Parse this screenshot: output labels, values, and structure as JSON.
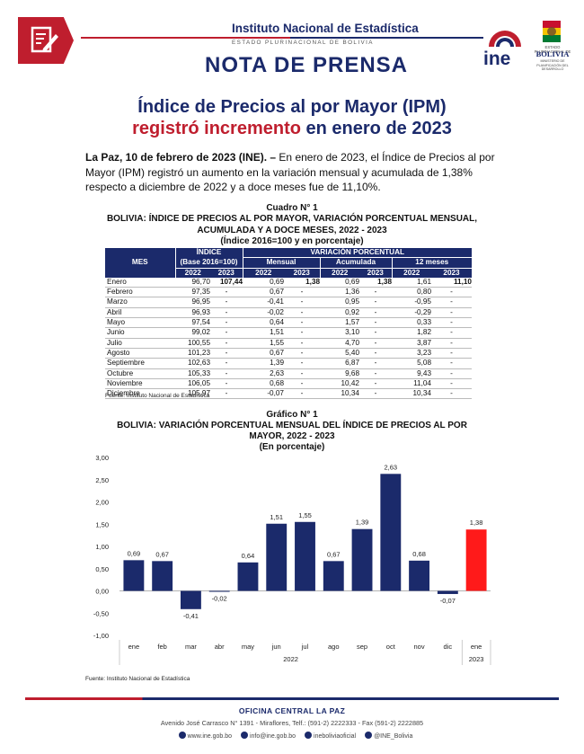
{
  "header": {
    "institution": "Instituto Nacional de Estadística",
    "subtitle": "ESTADO PLURINACIONAL DE BOLIVIA",
    "nota": "NOTA DE PRENSA",
    "logo_text": "ine",
    "gov_estado": "ESTADO PLURINACIONAL DE",
    "gov_country": "BOLIVIA",
    "gov_ministry": "MINISTERIO DE PLANIFICACIÓN DEL DESARROLLO"
  },
  "title": {
    "line1": "Índice de Precios al por Mayor (IPM)",
    "line2_red": "registró incremento",
    "line2_blue": " en enero de 2023"
  },
  "intro": {
    "lead": "La Paz, 10 de febrero de 2023 (INE). –",
    "body": " En enero de 2023, el Índice de Precios al por Mayor (IPM) registró un aumento en la variación mensual y acumulada de 1,38% respecto a diciembre de 2022 y a doce meses fue de 11,10%."
  },
  "table": {
    "label": "Cuadro N° 1",
    "title1": "BOLIVIA: ÍNDICE DE PRECIOS AL POR MAYOR, VARIACIÓN PORCENTUAL MENSUAL,",
    "title2": "ACUMULADA Y A DOCE MESES, 2022 - 2023",
    "title3": "(Índice 2016=100 y en porcentaje)",
    "h_mes": "MES",
    "h_indice": "ÍNDICE",
    "h_base": "(Base 2016=100)",
    "h_variacion": "VARIACIÓN PORCENTUAL",
    "h_mensual": "Mensual",
    "h_acumulada": "Acumulada",
    "h_12meses": "12 meses",
    "y2022": "2022",
    "y2023": "2023",
    "rows": [
      [
        "Enero",
        "96,70",
        "107,44",
        "0,69",
        "1,38",
        "0,69",
        "1,38",
        "1,61",
        "11,10"
      ],
      [
        "Febrero",
        "97,35",
        "-",
        "0,67",
        "-",
        "1,36",
        "-",
        "0,80",
        "-"
      ],
      [
        "Marzo",
        "96,95",
        "-",
        "-0,41",
        "-",
        "0,95",
        "-",
        "-0,95",
        "-"
      ],
      [
        "Abril",
        "96,93",
        "-",
        "-0,02",
        "-",
        "0,92",
        "-",
        "-0,29",
        "-"
      ],
      [
        "Mayo",
        "97,54",
        "-",
        "0,64",
        "-",
        "1,57",
        "-",
        "0,33",
        "-"
      ],
      [
        "Junio",
        "99,02",
        "-",
        "1,51",
        "-",
        "3,10",
        "-",
        "1,82",
        "-"
      ],
      [
        "Julio",
        "100,55",
        "-",
        "1,55",
        "-",
        "4,70",
        "-",
        "3,87",
        "-"
      ],
      [
        "Agosto",
        "101,23",
        "-",
        "0,67",
        "-",
        "5,40",
        "-",
        "3,23",
        "-"
      ],
      [
        "Septiembre",
        "102,63",
        "-",
        "1,39",
        "-",
        "6,87",
        "-",
        "5,08",
        "-"
      ],
      [
        "Octubre",
        "105,33",
        "-",
        "2,63",
        "-",
        "9,68",
        "-",
        "9,43",
        "-"
      ],
      [
        "Noviembre",
        "106,05",
        "-",
        "0,68",
        "-",
        "10,42",
        "-",
        "11,04",
        "-"
      ],
      [
        "Diciembre",
        "105,97",
        "-",
        "-0,07",
        "-",
        "10,34",
        "-",
        "10,34",
        "-"
      ]
    ],
    "source": "Fuente: Instituto Nacional de Estadística"
  },
  "chart_section": {
    "label": "Gráfico N° 1",
    "title1": "BOLIVIA: VARIACIÓN PORCENTUAL MENSUAL DEL ÍNDICE DE PRECIOS AL POR",
    "title2": "MAYOR, 2022 - 2023",
    "title3": "(En porcentaje)",
    "source": "Fuente: Instituto Nacional de Estadística"
  },
  "chart_data": {
    "type": "bar",
    "title": "BOLIVIA: VARIACIÓN PORCENTUAL MENSUAL DEL ÍNDICE DE PRECIOS AL POR MAYOR, 2022 - 2023",
    "categories": [
      "ene",
      "feb",
      "mar",
      "abr",
      "may",
      "jun",
      "jul",
      "ago",
      "sep",
      "oct",
      "nov",
      "dic",
      "ene"
    ],
    "values": [
      0.69,
      0.67,
      -0.41,
      -0.02,
      0.64,
      1.51,
      1.55,
      0.67,
      1.39,
      2.63,
      0.68,
      -0.07,
      1.38
    ],
    "value_labels": [
      "0,69",
      "0,67",
      "-0,41",
      "-0,02",
      "0,64",
      "1,51",
      "1,55",
      "0,67",
      "1,39",
      "2,63",
      "0,68",
      "-0,07",
      "1,38"
    ],
    "groups": [
      {
        "label": "2022",
        "count": 12
      },
      {
        "label": "2023",
        "count": 1
      }
    ],
    "yticks": [
      "3,00",
      "2,50",
      "2,00",
      "1,50",
      "1,00",
      "0,50",
      "0,00",
      "-0,50",
      "-1,00"
    ],
    "ylim": [
      -1.0,
      3.0
    ],
    "bar_color": "#1b2a6b",
    "highlight_color": "#ff1a1a",
    "xlabel": "",
    "ylabel": ""
  },
  "footer": {
    "office": "OFICINA CENTRAL LA PAZ",
    "address": "Avenido José Carrasco N° 1391 - Miraflores, Telf.: (591-2) 2222333 - Fax (591-2) 2222885",
    "web": "www.ine.gob.bo",
    "email": "info@ine.gob.bo",
    "facebook": "ineboliviaoficial",
    "twitter": "@INE_Bolivia"
  }
}
